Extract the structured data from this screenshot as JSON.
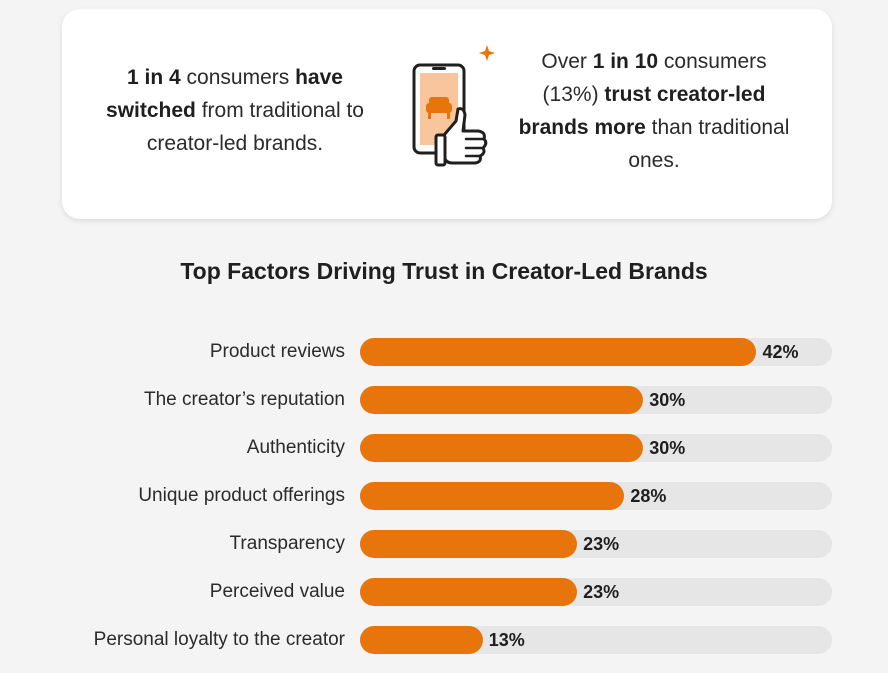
{
  "colors": {
    "accent": "#e8740c",
    "track": "#e6e6e6",
    "card": "#ffffff",
    "background": "#f4f4f4"
  },
  "card": {
    "left_stat": {
      "p1": "1 in 4",
      "p2": " consumers ",
      "p3": "have switched",
      "p4": " from traditional to creator-led brands."
    },
    "right_stat": {
      "p1": "Over ",
      "p2": "1 in 10",
      "p3": " consumers (13%) ",
      "p4": "trust creator-led brands more",
      "p5": " than traditional ones."
    },
    "illustration": "phone-thumbs-up-icon"
  },
  "chart_data": {
    "type": "bar",
    "orientation": "horizontal",
    "title": "Top Factors Driving Trust in Creator-Led Brands",
    "categories": [
      "Product reviews",
      "The creator’s reputation",
      "Authenticity",
      "Unique product offerings",
      "Transparency",
      "Perceived value",
      "Personal loyalty to the creator"
    ],
    "values": [
      42,
      30,
      30,
      28,
      23,
      23,
      13
    ],
    "value_labels": [
      "42%",
      "30%",
      "30%",
      "28%",
      "23%",
      "23%",
      "13%"
    ],
    "xlim": [
      0,
      50
    ],
    "grid": false,
    "legend": "none"
  }
}
